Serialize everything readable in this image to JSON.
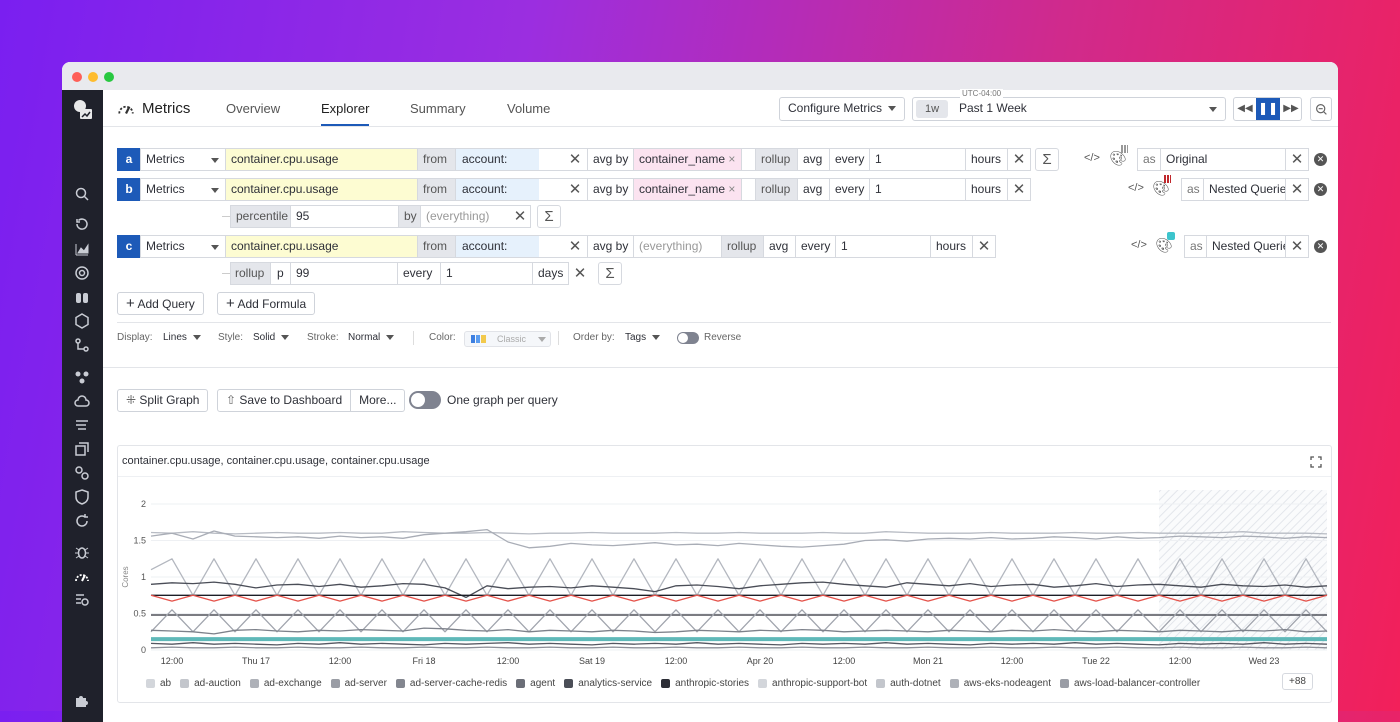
{
  "header": {
    "app_title": "Metrics",
    "tabs": [
      "Overview",
      "Explorer",
      "Summary",
      "Volume"
    ],
    "active_tab": "Explorer",
    "configure_label": "Configure Metrics",
    "timezone": "UTC-04:00",
    "time_badge": "1w",
    "time_range": "Past 1 Week"
  },
  "queries": [
    {
      "letter": "a",
      "source": "Metrics",
      "metric": "container.cpu.usage",
      "from_label": "from",
      "from_value": "account:",
      "avg_by_label": "avg by",
      "group_by": "container_name",
      "rollup_label": "rollup",
      "rollup_fn": "avg",
      "every_label": "every",
      "every_value": "1",
      "every_unit": "hours",
      "alias_label": "as",
      "alias": "Original"
    },
    {
      "letter": "b",
      "source": "Metrics",
      "metric": "container.cpu.usage",
      "from_label": "from",
      "from_value": "account:",
      "avg_by_label": "avg by",
      "group_by": "container_name",
      "rollup_label": "rollup",
      "rollup_fn": "avg",
      "every_label": "every",
      "every_value": "1",
      "every_unit": "hours",
      "alias_label": "as",
      "alias": "Nested Queries",
      "sub": {
        "fn": "percentile",
        "value": "95",
        "by_label": "by",
        "by_placeholder": "(everything)"
      }
    },
    {
      "letter": "c",
      "source": "Metrics",
      "metric": "container.cpu.usage",
      "from_label": "from",
      "from_value": "account:",
      "avg_by_label": "avg by",
      "group_by_placeholder": "(everything)",
      "rollup_label": "rollup",
      "rollup_fn": "avg",
      "every_label": "every",
      "every_value": "1",
      "every_unit": "hours",
      "alias_label": "as",
      "alias": "Nested Queries",
      "sub": {
        "fn": "rollup",
        "agg": "p",
        "value": "99",
        "every_label": "every",
        "every_value": "1",
        "every_unit": "days"
      }
    }
  ],
  "actions": {
    "add_query": "Add Query",
    "add_formula": "Add Formula",
    "sigma": "Σ"
  },
  "display_options": {
    "display_label": "Display:",
    "display": "Lines",
    "style_label": "Style:",
    "style": "Solid",
    "stroke_label": "Stroke:",
    "stroke": "Normal",
    "color_label": "Color:",
    "color": "Classic",
    "order_label": "Order by:",
    "order": "Tags",
    "reverse_label": "Reverse",
    "reverse_on": false
  },
  "graph_actions": {
    "split": "Split Graph",
    "save": "Save to Dashboard",
    "more": "More...",
    "one_per_query": "One graph per query",
    "one_per_query_on": false
  },
  "colors": {
    "accent": "#1d5ab8",
    "sidebar": "#1f212b",
    "red_series": "#e5534b",
    "teal_series": "#5fb8b8"
  },
  "chart_data": {
    "type": "line",
    "title": "container.cpu.usage, container.cpu.usage, container.cpu.usage",
    "ylabel": "Cores",
    "ylim": [
      0,
      2
    ],
    "yticks": [
      0,
      0.5,
      1,
      1.5,
      2
    ],
    "xlim": [
      "Apr 16 09:00",
      "Apr 23 09:00"
    ],
    "x_step_hours": 3,
    "hatched_from": "Apr 22 09:00",
    "grid": true,
    "x_ticks": [
      {
        "at": "Apr 16 12:00",
        "label": "12:00"
      },
      {
        "at": "Apr 17 00:00",
        "label": "Thu 17"
      },
      {
        "at": "Apr 17 12:00",
        "label": "12:00"
      },
      {
        "at": "Apr 18 00:00",
        "label": "Fri 18"
      },
      {
        "at": "Apr 18 12:00",
        "label": "12:00"
      },
      {
        "at": "Apr 19 00:00",
        "label": "Sat 19"
      },
      {
        "at": "Apr 19 12:00",
        "label": "12:00"
      },
      {
        "at": "Apr 20 00:00",
        "label": "Apr 20"
      },
      {
        "at": "Apr 20 12:00",
        "label": "12:00"
      },
      {
        "at": "Apr 21 00:00",
        "label": "Mon 21"
      },
      {
        "at": "Apr 21 12:00",
        "label": "12:00"
      },
      {
        "at": "Apr 22 00:00",
        "label": "Tue 22"
      },
      {
        "at": "Apr 22 12:00",
        "label": "12:00"
      },
      {
        "at": "Apr 23 00:00",
        "label": "Wed 23"
      }
    ],
    "series": [
      {
        "color": "#b8bcc4",
        "values": [
          1.61,
          1.6,
          1.62,
          1.6,
          1.59,
          1.6,
          1.61,
          1.6,
          1.6,
          1.61,
          1.6,
          1.6,
          1.62,
          1.61,
          1.6,
          1.6,
          1.61,
          1.6,
          1.59,
          1.6,
          1.6,
          1.61,
          1.6,
          1.6,
          1.6,
          1.61,
          1.6,
          1.6,
          1.61,
          1.6,
          1.6,
          1.6,
          1.61,
          1.6,
          1.6,
          1.62,
          1.61,
          1.6,
          1.6,
          1.6,
          1.61,
          1.6,
          1.6,
          1.6,
          1.61,
          1.6,
          1.6,
          1.61,
          1.6,
          1.6,
          1.6,
          1.61,
          1.62,
          1.6,
          1.6,
          1.6,
          1.59
        ]
      },
      {
        "color": "#a9adb6",
        "values": [
          1.56,
          1.6,
          1.52,
          1.63,
          1.56,
          1.55,
          1.54,
          1.55,
          1.53,
          1.56,
          1.54,
          1.55,
          1.53,
          1.58,
          1.6,
          1.62,
          1.65,
          1.48,
          1.4,
          1.42,
          1.46,
          1.44,
          1.43,
          1.45,
          1.47,
          1.44,
          1.45,
          1.43,
          1.46,
          1.44,
          1.42,
          1.41,
          1.43,
          1.45,
          1.5,
          1.51,
          1.49,
          1.52,
          1.53,
          1.52,
          1.54,
          1.52,
          1.53,
          1.55,
          1.54,
          1.52,
          1.55,
          1.53,
          1.54,
          1.56,
          1.55,
          1.54,
          1.56,
          1.55,
          1.53,
          1.55,
          1.54
        ]
      },
      {
        "color": "#b3b7bf",
        "values": [
          1.1,
          1.25,
          0.75,
          1.25,
          0.75,
          1.25,
          0.75,
          1.25,
          0.75,
          1.25,
          0.75,
          1.25,
          0.75,
          1.25,
          0.75,
          1.25,
          0.75,
          1.25,
          0.75,
          1.25,
          0.75,
          1.25,
          0.75,
          1.25,
          0.75,
          1.25,
          0.75,
          1.25,
          0.75,
          1.25,
          0.75,
          1.25,
          0.75,
          1.25,
          0.75,
          1.25,
          0.75,
          1.25,
          0.75,
          1.25,
          0.75,
          1.25,
          0.75,
          1.25,
          0.75,
          1.25,
          0.75,
          1.25,
          0.75,
          1.25,
          0.75,
          1.25,
          0.75,
          1.25,
          0.75,
          1.25,
          0.75
        ]
      },
      {
        "color": "#4a4d57",
        "values": [
          0.9,
          0.92,
          0.91,
          0.93,
          0.9,
          0.85,
          0.89,
          0.9,
          0.87,
          0.9,
          0.86,
          0.88,
          0.91,
          0.9,
          0.85,
          0.72,
          0.88,
          0.84,
          0.86,
          0.87,
          0.85,
          0.88,
          0.86,
          0.84,
          0.8,
          0.88,
          0.89,
          0.87,
          0.84,
          0.88,
          0.9,
          0.92,
          0.93,
          0.9,
          0.88,
          0.86,
          0.92,
          0.9,
          0.88,
          0.91,
          0.87,
          0.89,
          0.9,
          0.86,
          0.88,
          0.91,
          0.87,
          0.89,
          0.9,
          0.88,
          0.86,
          0.9,
          0.88,
          0.87,
          0.89,
          0.86,
          0.88
        ]
      },
      {
        "color": "#1c1e26",
        "values": [
          0.75,
          0.75,
          0.75,
          0.75,
          0.75,
          0.75,
          0.75,
          0.75,
          0.75,
          0.75,
          0.75,
          0.75,
          0.75,
          0.75,
          0.75,
          0.75,
          0.75,
          0.75,
          0.75,
          0.75,
          0.75,
          0.75,
          0.75,
          0.75,
          0.75,
          0.75,
          0.75,
          0.75,
          0.75,
          0.75,
          0.75,
          0.75,
          0.75,
          0.75,
          0.75,
          0.75,
          0.75,
          0.75,
          0.75,
          0.75,
          0.75,
          0.75,
          0.75,
          0.75,
          0.75,
          0.75,
          0.75,
          0.75,
          0.75,
          0.75,
          0.75,
          0.75,
          0.75,
          0.75,
          0.75,
          0.75,
          0.75
        ]
      },
      {
        "color": "#e5534b",
        "values": [
          0.75,
          0.67,
          0.75,
          0.67,
          0.75,
          0.67,
          0.75,
          0.67,
          0.75,
          0.67,
          0.75,
          0.67,
          0.75,
          0.67,
          0.75,
          0.67,
          0.75,
          0.67,
          0.75,
          0.67,
          0.75,
          0.67,
          0.75,
          0.67,
          0.75,
          0.67,
          0.75,
          0.67,
          0.75,
          0.67,
          0.75,
          0.67,
          0.75,
          0.67,
          0.75,
          0.67,
          0.75,
          0.67,
          0.75,
          0.67,
          0.75,
          0.67,
          0.75,
          0.67,
          0.75,
          0.67,
          0.75,
          0.67,
          0.75,
          0.67,
          0.75,
          0.67,
          0.75,
          0.67,
          0.75,
          0.67,
          0.75
        ]
      },
      {
        "color": "#2c2f38",
        "values": [
          0.48,
          0.48,
          0.48,
          0.48,
          0.48,
          0.48,
          0.48,
          0.48,
          0.48,
          0.48,
          0.48,
          0.48,
          0.48,
          0.48,
          0.48,
          0.48,
          0.48,
          0.48,
          0.48,
          0.48,
          0.48,
          0.48,
          0.48,
          0.48,
          0.48,
          0.48,
          0.48,
          0.48,
          0.48,
          0.48,
          0.48,
          0.48,
          0.48,
          0.48,
          0.48,
          0.48,
          0.48,
          0.48,
          0.48,
          0.48,
          0.48,
          0.48,
          0.48,
          0.48,
          0.48,
          0.48,
          0.48,
          0.48,
          0.48,
          0.48,
          0.48,
          0.48,
          0.48,
          0.48,
          0.48,
          0.48,
          0.48
        ]
      },
      {
        "color": "#a0a4ad",
        "values": [
          0.25,
          0.55,
          0.25,
          0.55,
          0.25,
          0.55,
          0.25,
          0.55,
          0.25,
          0.55,
          0.25,
          0.55,
          0.25,
          0.55,
          0.25,
          0.55,
          0.25,
          0.55,
          0.25,
          0.55,
          0.25,
          0.55,
          0.25,
          0.55,
          0.25,
          0.55,
          0.25,
          0.55,
          0.25,
          0.55,
          0.25,
          0.55,
          0.25,
          0.55,
          0.25,
          0.55,
          0.25,
          0.55,
          0.25,
          0.55,
          0.25,
          0.55,
          0.25,
          0.55,
          0.25,
          0.55,
          0.25,
          0.55,
          0.25,
          0.55,
          0.25,
          0.55,
          0.25,
          0.55,
          0.25,
          0.55,
          0.25
        ]
      },
      {
        "color": "#7d818a",
        "values": [
          0.27,
          0.26,
          0.25,
          0.22,
          0.27,
          0.28,
          0.26,
          0.25,
          0.27,
          0.26,
          0.28,
          0.27,
          0.26,
          0.3,
          0.29,
          0.27,
          0.26,
          0.28,
          0.25,
          0.27,
          0.26,
          0.25,
          0.27,
          0.26,
          0.24,
          0.25,
          0.27,
          0.26,
          0.25,
          0.27,
          0.26,
          0.28,
          0.27,
          0.25,
          0.26,
          0.27,
          0.26,
          0.25,
          0.27,
          0.26,
          0.25,
          0.27,
          0.26,
          0.28,
          0.26,
          0.25,
          0.27,
          0.26,
          0.25,
          0.27,
          0.26,
          0.25,
          0.27,
          0.26,
          0.28,
          0.25,
          0.26
        ]
      },
      {
        "color": "#5fb8b8",
        "values": [
          0.15,
          0.15,
          0.15,
          0.15,
          0.15,
          0.15,
          0.15,
          0.15,
          0.15,
          0.15,
          0.15,
          0.15,
          0.15,
          0.15,
          0.15,
          0.15,
          0.15,
          0.15,
          0.15,
          0.15,
          0.15,
          0.15,
          0.15,
          0.15,
          0.15,
          0.15,
          0.15,
          0.15,
          0.15,
          0.15,
          0.15,
          0.15,
          0.15,
          0.15,
          0.15,
          0.15,
          0.15,
          0.15,
          0.15,
          0.15,
          0.15,
          0.15,
          0.15,
          0.15,
          0.15,
          0.15,
          0.15,
          0.15,
          0.15,
          0.15,
          0.15,
          0.15,
          0.15,
          0.15,
          0.15,
          0.15,
          0.15
        ]
      },
      {
        "color": "#555862",
        "values": [
          0.09,
          0.08,
          0.1,
          0.08,
          0.09,
          0.08,
          0.07,
          0.09,
          0.08,
          0.1,
          0.08,
          0.09,
          0.08,
          0.07,
          0.09,
          0.08,
          0.09,
          0.1,
          0.08,
          0.09,
          0.08,
          0.07,
          0.09,
          0.08,
          0.09,
          0.08,
          0.1,
          0.08,
          0.09,
          0.08,
          0.07,
          0.09,
          0.08,
          0.09,
          0.08,
          0.1,
          0.08,
          0.09,
          0.08,
          0.07,
          0.09,
          0.08,
          0.09,
          0.08,
          0.1,
          0.08,
          0.09,
          0.08,
          0.07,
          0.09,
          0.08,
          0.09,
          0.08,
          0.1,
          0.08,
          0.09,
          0.08
        ]
      },
      {
        "color": "#8d9099",
        "values": [
          0.03,
          0.04,
          0.03,
          0.03,
          0.04,
          0.03,
          0.03,
          0.04,
          0.03,
          0.03,
          0.04,
          0.03,
          0.03,
          0.04,
          0.03,
          0.03,
          0.04,
          0.03,
          0.03,
          0.04,
          0.03,
          0.03,
          0.04,
          0.03,
          0.03,
          0.04,
          0.03,
          0.03,
          0.04,
          0.03,
          0.03,
          0.04,
          0.03,
          0.03,
          0.04,
          0.03,
          0.03,
          0.04,
          0.03,
          0.03,
          0.04,
          0.03,
          0.03,
          0.04,
          0.03,
          0.03,
          0.04,
          0.03,
          0.03,
          0.04,
          0.03,
          0.03,
          0.04,
          0.03,
          0.03,
          0.04,
          0.03
        ]
      }
    ],
    "legend": [
      {
        "name": "ab",
        "color": "#d3d6db"
      },
      {
        "name": "ad-auction",
        "color": "#c3c6cc"
      },
      {
        "name": "ad-exchange",
        "color": "#aeb1b8"
      },
      {
        "name": "ad-server",
        "color": "#9a9da5"
      },
      {
        "name": "ad-server-cache-redis",
        "color": "#83868f"
      },
      {
        "name": "agent",
        "color": "#6b6e77"
      },
      {
        "name": "analytics-service",
        "color": "#4b4e57"
      },
      {
        "name": "anthropic-stories",
        "color": "#2b2d35"
      },
      {
        "name": "anthropic-support-bot",
        "color": "#d3d6db"
      },
      {
        "name": "auth-dotnet",
        "color": "#c3c6cc"
      },
      {
        "name": "aws-eks-nodeagent",
        "color": "#aeb1b8"
      },
      {
        "name": "aws-load-balancer-controller",
        "color": "#9a9da5"
      }
    ],
    "legend_more": "+88"
  }
}
